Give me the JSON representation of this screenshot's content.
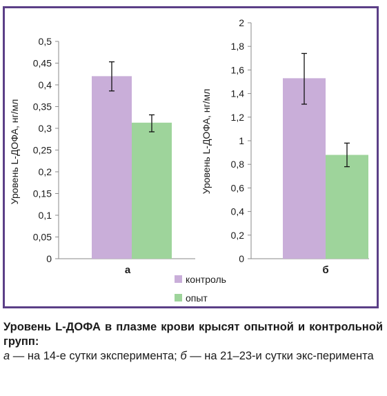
{
  "chart_data": [
    {
      "type": "bar",
      "panel_label": "а",
      "categories": [
        "а"
      ],
      "ylabel": "Уровень L-ДОФА, нг/мл",
      "ylim": [
        0,
        0.5
      ],
      "yticks": [
        0,
        0.05,
        0.1,
        0.15,
        0.2,
        0.25,
        0.3,
        0.35,
        0.4,
        0.45,
        0.5
      ],
      "ytick_labels": [
        "0",
        "0,05",
        "0,1",
        "0,15",
        "0,2",
        "0,25",
        "0,3",
        "0,35",
        "0,4",
        "0,45",
        "0,5"
      ],
      "series": [
        {
          "name": "контроль",
          "values": [
            0.42
          ],
          "error_low": [
            0.386
          ],
          "error_high": [
            0.453
          ],
          "color": "#c9aed9"
        },
        {
          "name": "опыт",
          "values": [
            0.313
          ],
          "error_low": [
            0.292
          ],
          "error_high": [
            0.331
          ],
          "color": "#9ed49b"
        }
      ]
    },
    {
      "type": "bar",
      "panel_label": "б",
      "categories": [
        "б"
      ],
      "ylabel": "Уровень L-ДОФА, нг/мл",
      "ylim": [
        0,
        2
      ],
      "yticks": [
        0,
        0.2,
        0.4,
        0.6,
        0.8,
        1,
        1.2,
        1.4,
        1.6,
        1.8,
        2
      ],
      "ytick_labels": [
        "0",
        "0,2",
        "0,4",
        "0,6",
        "0,8",
        "1",
        "1,2",
        "1,4",
        "1,6",
        "1,8",
        "2"
      ],
      "series": [
        {
          "name": "контроль",
          "values": [
            1.53
          ],
          "error_low": [
            1.31
          ],
          "error_high": [
            1.74
          ],
          "color": "#c9aed9"
        },
        {
          "name": "опыт",
          "values": [
            0.88
          ],
          "error_low": [
            0.78
          ],
          "error_high": [
            0.98
          ],
          "color": "#9ed49b"
        }
      ]
    }
  ],
  "legend": {
    "items": [
      {
        "label": "контроль",
        "color": "#c9aed9"
      },
      {
        "label": "опыт",
        "color": "#9ed49b"
      }
    ]
  },
  "caption": {
    "title": "Уровень L-ДОФА в плазме крови крысят опытной и контрольной групп:",
    "a_letter": "а",
    "a_text": " — на 14-е сутки эксперимента; ",
    "b_letter": "б",
    "b_text": " — на 21–23-и сутки экс-перимента"
  },
  "colors": {
    "frame": "#5b3f87",
    "axis": "#8a8a8a"
  }
}
